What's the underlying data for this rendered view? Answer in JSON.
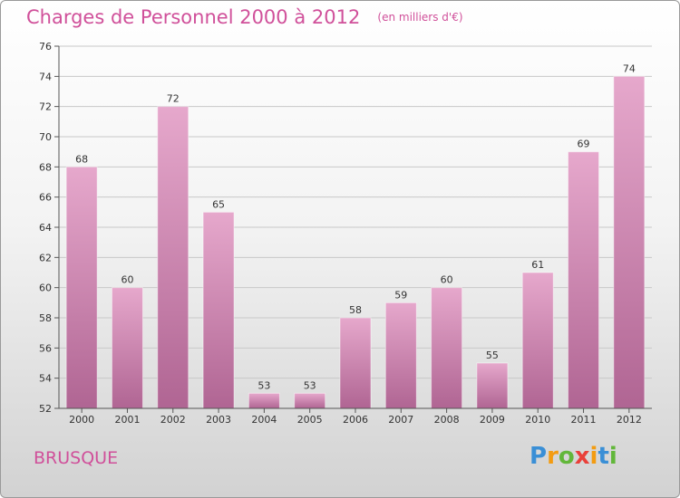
{
  "title": "Charges de Personnel 2000 à 2012",
  "subtitle": "(en milliers d'€)",
  "commune": "BRUSQUE",
  "logo": {
    "letters": [
      "P",
      "r",
      "o",
      "x",
      "i",
      "t",
      "i"
    ],
    "colors": [
      "#3a8fd6",
      "#f39c12",
      "#62b73a",
      "#e9403a",
      "#f39c12",
      "#3a8fd6",
      "#62b73a"
    ]
  },
  "colors": {
    "title": "#d0509a",
    "bar_top": "#e6a8cc",
    "bar_bottom": "#b06593"
  },
  "chart_data": {
    "type": "bar",
    "title": "Charges de Personnel 2000 à 2012",
    "subtitle": "(en milliers d'€)",
    "categories": [
      "2000",
      "2001",
      "2002",
      "2003",
      "2004",
      "2005",
      "2006",
      "2007",
      "2008",
      "2009",
      "2010",
      "2011",
      "2012"
    ],
    "values": [
      68,
      60,
      72,
      65,
      53,
      53,
      58,
      59,
      60,
      55,
      61,
      69,
      74
    ],
    "ylim": [
      52,
      76
    ],
    "yticks": [
      52,
      54,
      56,
      58,
      60,
      62,
      64,
      66,
      68,
      70,
      72,
      74,
      76
    ],
    "grid": true,
    "legend": "none"
  }
}
